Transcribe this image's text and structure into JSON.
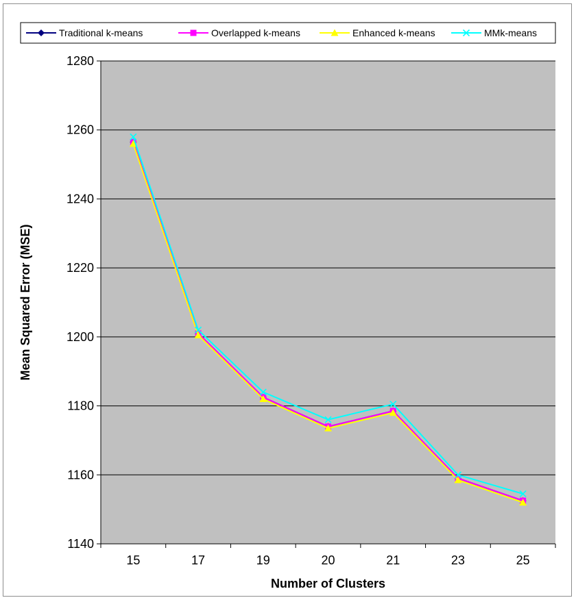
{
  "chart_data": {
    "type": "line",
    "title": "",
    "xlabel": "Number of Clusters",
    "ylabel": "Mean Squared Error (MSE)",
    "categories": [
      "15",
      "17",
      "19",
      "20",
      "21",
      "23",
      "25"
    ],
    "ylim": [
      1140,
      1280
    ],
    "yticks": [
      1140,
      1160,
      1180,
      1200,
      1220,
      1240,
      1260,
      1280
    ],
    "grid": true,
    "legend_position": "top",
    "plot_background": "#c0c0c0",
    "series": [
      {
        "name": "Traditional k-means",
        "color": "#000080",
        "marker": "diamond",
        "values": [
          1256.5,
          1201,
          1182.5,
          1174,
          1178.5,
          1159,
          1152.5
        ]
      },
      {
        "name": "Overlapped k-means",
        "color": "#ff00ff",
        "marker": "square",
        "values": [
          1256.5,
          1201,
          1182.5,
          1174,
          1178.5,
          1159,
          1152.5
        ]
      },
      {
        "name": "Enhanced k-means",
        "color": "#ffff00",
        "marker": "triangle",
        "values": [
          1256,
          1200.5,
          1182,
          1173.5,
          1178,
          1158.5,
          1152
        ]
      },
      {
        "name": "MMk-means",
        "color": "#00ffff",
        "marker": "x",
        "values": [
          1258,
          1202,
          1184,
          1176,
          1180.5,
          1160,
          1154.5
        ]
      }
    ]
  }
}
